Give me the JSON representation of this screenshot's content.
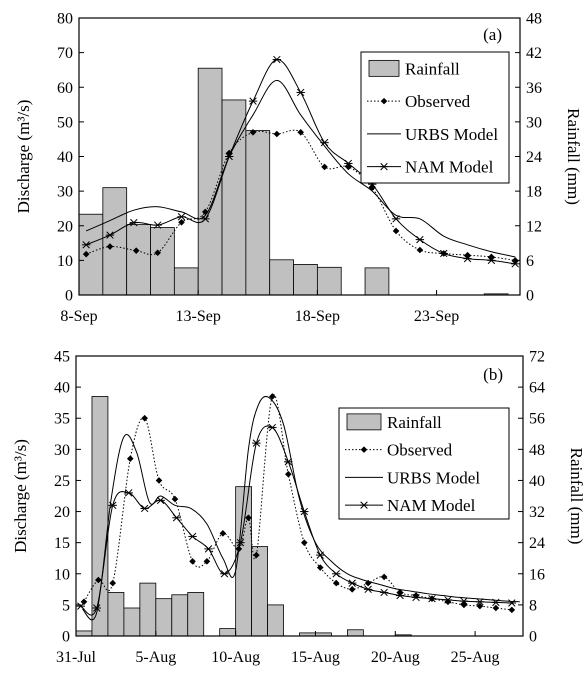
{
  "chart_data": [
    {
      "type": "bar+line",
      "panel_label": "(a)",
      "ylabel_left": "Discharge (m³/s)",
      "ylabel_right": "Rainfall (mm)",
      "y_left_ticks": [
        "0",
        "10",
        "20",
        "30",
        "40",
        "50",
        "60",
        "70",
        "80"
      ],
      "y_right_ticks": [
        "0",
        "6",
        "12",
        "18",
        "24",
        "30",
        "36",
        "42",
        "48"
      ],
      "ylim_left": [
        0,
        80
      ],
      "ylim_right": [
        0,
        48
      ],
      "xlim": [
        8,
        26.5
      ],
      "x_ticks": [
        {
          "x": 8,
          "label": "8-Sep"
        },
        {
          "x": 13,
          "label": "13-Sep"
        },
        {
          "x": 18,
          "label": "18-Sep"
        },
        {
          "x": 23,
          "label": "23-Sep"
        }
      ],
      "legend": [
        "Rainfall",
        "Observed",
        "URBS Model",
        "NAM Model"
      ],
      "rainfall": [
        {
          "x": 8,
          "mm": 14
        },
        {
          "x": 9,
          "mm": 18.6
        },
        {
          "x": 10,
          "mm": 12.2
        },
        {
          "x": 11,
          "mm": 11.7
        },
        {
          "x": 12,
          "mm": 4.7
        },
        {
          "x": 13,
          "mm": 39.3
        },
        {
          "x": 14,
          "mm": 33.8
        },
        {
          "x": 15,
          "mm": 28.5
        },
        {
          "x": 16,
          "mm": 6.1
        },
        {
          "x": 17,
          "mm": 5.3
        },
        {
          "x": 18,
          "mm": 4.8
        },
        {
          "x": 20,
          "mm": 4.7
        },
        {
          "x": 25,
          "mm": 0.2
        }
      ],
      "observed": {
        "x": [
          8.3,
          9.3,
          10.4,
          11.3,
          12.3,
          13.3,
          14.3,
          15.3,
          16.3,
          17.3,
          18.3,
          19.3,
          20.3,
          21.3,
          22.3,
          23.3,
          24.3,
          25.3,
          26.3
        ],
        "y": [
          11.8,
          14,
          12.8,
          12.2,
          21,
          24,
          41,
          47,
          46.5,
          47,
          37,
          37,
          31,
          18.5,
          13,
          12,
          11.5,
          11,
          10
        ]
      },
      "urbs": {
        "x": [
          8.3,
          9.3,
          10.3,
          11.3,
          12.3,
          13.3,
          14.3,
          15.3,
          16.3,
          17.3,
          18.3,
          19.3,
          20.3,
          21.3,
          22.3,
          23.3,
          24.3,
          25.3,
          26.3
        ],
        "y": [
          18.5,
          21.5,
          24.5,
          25.5,
          24,
          23,
          40,
          52,
          62,
          52,
          43,
          35,
          30,
          23,
          22,
          17,
          14.5,
          12.5,
          11
        ]
      },
      "nam": {
        "x": [
          8.3,
          9.3,
          10.3,
          11.3,
          12.3,
          13.3,
          14.3,
          15.3,
          16.3,
          17.3,
          18.3,
          19.3,
          20.3,
          21.3,
          22.3,
          23.3,
          24.3,
          25.3,
          26.3
        ],
        "y": [
          14.5,
          17.3,
          20.9,
          20.2,
          22.6,
          22,
          40,
          56,
          68,
          58.5,
          44,
          38,
          32,
          22,
          16,
          12,
          10.5,
          10,
          9
        ]
      }
    },
    {
      "type": "bar+line",
      "panel_label": "(b)",
      "ylabel_left": "Discharge (m³/s)",
      "ylabel_right": "Rainfall (mm)",
      "y_left_ticks": [
        "0",
        "5",
        "10",
        "15",
        "20",
        "25",
        "30",
        "35",
        "40",
        "45"
      ],
      "y_right_ticks": [
        "0",
        "8",
        "16",
        "24",
        "32",
        "40",
        "48",
        "56",
        "64",
        "72"
      ],
      "ylim_left": [
        0,
        45
      ],
      "ylim_right": [
        0,
        72
      ],
      "xlim": [
        0,
        28
      ],
      "x_ticks": [
        {
          "x": 0,
          "label": "31-Jul"
        },
        {
          "x": 5,
          "label": "5-Aug"
        },
        {
          "x": 10,
          "label": "10-Aug"
        },
        {
          "x": 15,
          "label": "15-Aug"
        },
        {
          "x": 20,
          "label": "20-Aug"
        },
        {
          "x": 25,
          "label": "25-Aug"
        }
      ],
      "legend": [
        "Rainfall",
        "Observed",
        "URBS Model",
        "NAM Model"
      ],
      "rainfall": [
        {
          "x": 0,
          "mm": 1.3
        },
        {
          "x": 1,
          "mm": 61.6
        },
        {
          "x": 2,
          "mm": 11.2
        },
        {
          "x": 3,
          "mm": 7.2
        },
        {
          "x": 4,
          "mm": 13.6
        },
        {
          "x": 5,
          "mm": 9.6
        },
        {
          "x": 6,
          "mm": 10.6
        },
        {
          "x": 7,
          "mm": 11.2
        },
        {
          "x": 9,
          "mm": 1.9
        },
        {
          "x": 10,
          "mm": 38.4
        },
        {
          "x": 11,
          "mm": 23
        },
        {
          "x": 12,
          "mm": 8
        },
        {
          "x": 14,
          "mm": 0.8
        },
        {
          "x": 15,
          "mm": 0.8
        },
        {
          "x": 17,
          "mm": 1.6
        },
        {
          "x": 20,
          "mm": 0.3
        }
      ],
      "observed": {
        "x": [
          0.5,
          1.4,
          2.3,
          3.4,
          4.3,
          5.2,
          6.2,
          7.3,
          8.2,
          9.2,
          10.2,
          10.8,
          11.3,
          12.3,
          13.3,
          14.3,
          15.3,
          16.3,
          17.3,
          18.3,
          19.3,
          20.3,
          21.3,
          22.3,
          23.3,
          24.3,
          25.3,
          26.3,
          27.3
        ],
        "y": [
          5.5,
          9,
          8.5,
          28.5,
          35,
          25,
          22,
          12,
          12,
          16.5,
          14,
          19,
          13,
          38.5,
          26,
          15,
          11,
          8.5,
          7.5,
          8.5,
          9.5,
          7,
          6.5,
          6,
          5.5,
          5,
          4.8,
          4.5,
          4.2
        ]
      },
      "urbs": {
        "x": [
          0.4,
          1.3,
          2.2,
          3.0,
          3.8,
          4.6,
          5.3,
          6.2,
          7.2,
          8.2,
          9.2,
          10.0,
          10.8,
          11.4,
          12.1,
          13.0,
          14.0,
          15.0,
          16.0,
          17.0,
          18.0,
          19.0,
          20.0,
          21.0,
          22.0,
          23.0,
          24.0,
          25.0,
          26.0,
          27.0,
          27.8
        ],
        "y": [
          4.3,
          3.8,
          22,
          32,
          29.5,
          21.5,
          22.5,
          21,
          20.5,
          18,
          12.5,
          10.5,
          30,
          37,
          38.3,
          34,
          22,
          15,
          12,
          10,
          9,
          8.3,
          7.6,
          7.2,
          6.8,
          6.5,
          6.2,
          6,
          5.8,
          5.6,
          5.5
        ]
      },
      "nam": {
        "x": [
          0.3,
          1.3,
          2.3,
          3.3,
          4.3,
          5.3,
          6.3,
          7.3,
          8.3,
          9.3,
          10.3,
          11.3,
          12.3,
          13.3,
          14.3,
          15.3,
          16.3,
          17.3,
          18.3,
          19.3,
          20.3,
          21.3,
          22.3,
          23.3,
          24.3,
          25.3,
          26.3,
          27.3
        ],
        "y": [
          4.8,
          4.5,
          21,
          23,
          20.5,
          21.8,
          19,
          16,
          14,
          10,
          15,
          31,
          33.5,
          28,
          20,
          13,
          10,
          8.5,
          7.5,
          7,
          6.5,
          6.2,
          6,
          5.8,
          5.6,
          5.5,
          5.4,
          5.3
        ]
      }
    }
  ]
}
